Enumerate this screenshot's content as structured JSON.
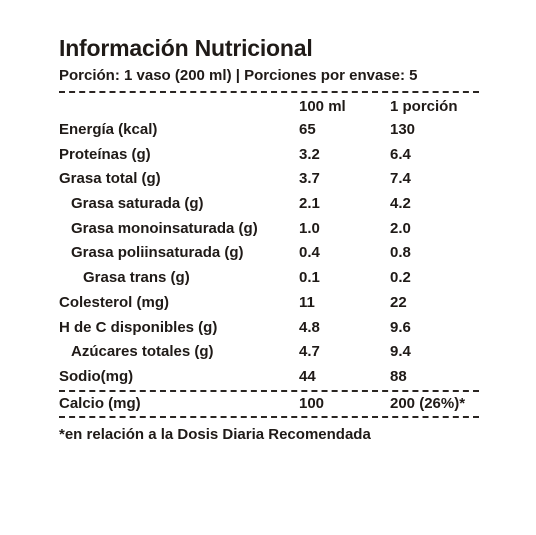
{
  "title": "Información Nutricional",
  "portion": "Porción: 1 vaso (200 ml) | Porciones por envase: 5",
  "columns": {
    "c1": "100 ml",
    "c2": "1 porción"
  },
  "rows": [
    {
      "label": "Energía (kcal)",
      "v1": "65",
      "v2": "130"
    },
    {
      "label": "Proteínas (g)",
      "v1": "3.2",
      "v2": "6.4"
    },
    {
      "label": "Grasa total (g)",
      "v1": "3.7",
      "v2": "7.4"
    },
    {
      "label": "Grasa saturada (g)",
      "v1": "2.1",
      "v2": "4.2"
    },
    {
      "label": "Grasa monoinsaturada (g)",
      "v1": "1.0",
      "v2": "2.0"
    },
    {
      "label": "Grasa poliinsaturada (g)",
      "v1": "0.4",
      "v2": "0.8"
    },
    {
      "label": "Grasa trans (g)",
      "v1": "0.1",
      "v2": "0.2"
    },
    {
      "label": "Colesterol (mg)",
      "v1": "11",
      "v2": "22"
    },
    {
      "label": "H de C disponibles (g)",
      "v1": "4.8",
      "v2": "9.6"
    },
    {
      "label": "Azúcares totales (g)",
      "v1": "4.7",
      "v2": "9.4"
    },
    {
      "label": "Sodio(mg)",
      "v1": "44",
      "v2": "88"
    },
    {
      "label": "Calcio (mg)",
      "v1": "100",
      "v2": "200 (26%)*"
    }
  ],
  "footnote": "*en relación a la Dosis Diaria Recomendada"
}
